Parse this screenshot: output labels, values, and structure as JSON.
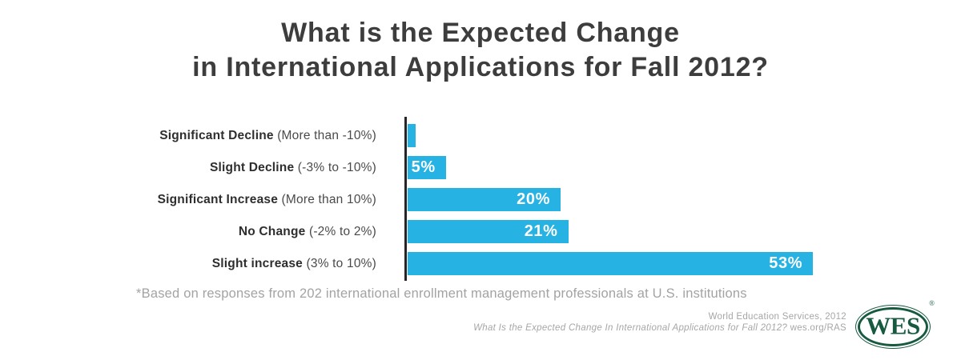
{
  "title": {
    "line1": "What is the Expected Change",
    "line2": "in International Applications for Fall 2012?"
  },
  "chart_data": {
    "type": "bar",
    "orientation": "horizontal",
    "title": "What is the Expected Change in International Applications for Fall 2012?",
    "bar_color": "#27b2e4",
    "axis_color": "#262425",
    "value_label_color": "#ffffff",
    "xlim": [
      0,
      55
    ],
    "categories": [
      {
        "label_bold": "Significant Decline",
        "label_detail": " (More than -10%)",
        "value": 1,
        "value_label": ""
      },
      {
        "label_bold": "Slight Decline",
        "label_detail": " (-3% to -10%)",
        "value": 5,
        "value_label": "5%"
      },
      {
        "label_bold": "Significant Increase",
        "label_detail": " (More than 10%)",
        "value": 20,
        "value_label": "20%"
      },
      {
        "label_bold": "No Change",
        "label_detail": " (-2% to 2%)",
        "value": 21,
        "value_label": "21%"
      },
      {
        "label_bold": "Slight increase",
        "label_detail": " (3% to 10%)",
        "value": 53,
        "value_label": "53%"
      }
    ]
  },
  "footnote": "*Based on responses from 202 international enrollment management professionals at U.S. institutions",
  "attribution": {
    "line1": "World Education Services, 2012",
    "line2_italic": "What Is the Expected Change In International Applications for Fall 2012?",
    "line2_regular": " wes.org/RAS"
  },
  "logo": {
    "text": "WES",
    "registered_mark": "®",
    "color": "#175a40"
  }
}
